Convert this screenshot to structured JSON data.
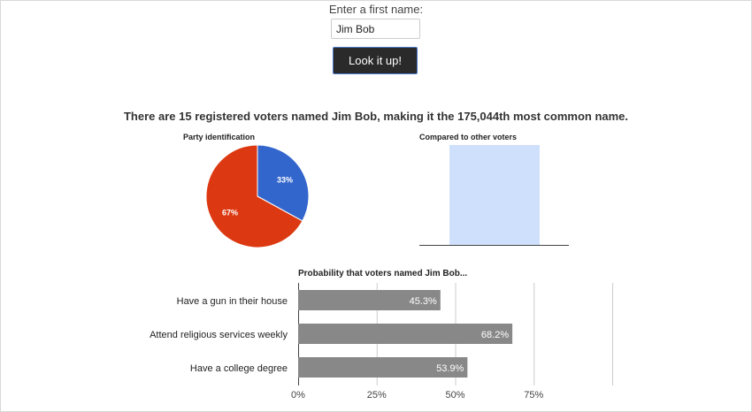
{
  "form": {
    "prompt": "Enter a first name:",
    "name_value": "Jim Bob",
    "button_label": "Look it up!"
  },
  "summary": {
    "text": "There are 15 registered voters named Jim Bob, making it the 175,044th most common name."
  },
  "pie": {
    "title": "Party identification",
    "slice_democrat_label": "33%",
    "slice_republican_label": "67%"
  },
  "compare": {
    "title": "Compared to other voters"
  },
  "bars": {
    "title": "Probability that voters named Jim Bob..."
  },
  "colors": {
    "democrat": "#3366cc",
    "republican": "#dc3912",
    "compare_bar": "#cfe0fc",
    "bar": "#888888"
  },
  "chart_data": [
    {
      "type": "pie",
      "title": "Party identification",
      "slices": [
        {
          "label": "33%",
          "value": 33,
          "color": "#3366cc"
        },
        {
          "label": "67%",
          "value": 67,
          "color": "#dc3912"
        }
      ]
    },
    {
      "type": "bar",
      "title": "Compared to other voters",
      "categories": [
        ""
      ],
      "values": [
        1
      ]
    },
    {
      "type": "bar",
      "orientation": "horizontal",
      "title": "Probability that voters named Jim Bob...",
      "categories": [
        "Have a gun in their house",
        "Attend religious services weekly",
        "Have a college degree"
      ],
      "values": [
        45.3,
        68.2,
        53.9
      ],
      "value_labels": [
        "45.3%",
        "68.2%",
        "53.9%"
      ],
      "xlim": [
        0,
        100
      ],
      "xticks": [
        0,
        25,
        50,
        75
      ],
      "xtick_labels": [
        "0%",
        "25%",
        "50%",
        "75%"
      ],
      "grid": true
    }
  ]
}
